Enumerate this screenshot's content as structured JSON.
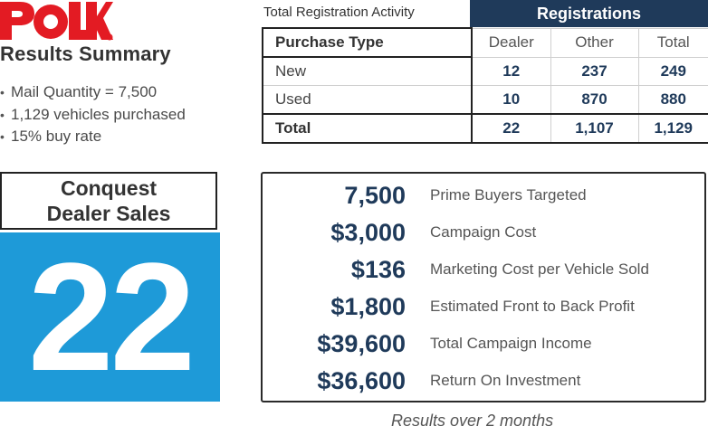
{
  "brand": {
    "logo_text": "POLK",
    "accent_color": "#e31b23"
  },
  "summary": {
    "title": "Results Summary",
    "bullets": [
      "Mail Quantity = 7,500",
      "1,129 vehicles purchased",
      "15% buy rate"
    ]
  },
  "registration": {
    "caption": "Total Registration Activity",
    "group_header": "Registrations",
    "columns": [
      "Purchase Type",
      "Dealer",
      "Other",
      "Total"
    ],
    "rows": [
      {
        "label": "New",
        "dealer": "12",
        "other": "237",
        "total": "249"
      },
      {
        "label": "Used",
        "dealer": "10",
        "other": "870",
        "total": "880"
      },
      {
        "label": "Total",
        "dealer": "22",
        "other": "1,107",
        "total": "1,129"
      }
    ],
    "header_color": "#1f3a5a"
  },
  "conquest": {
    "line1": "Conquest",
    "line2": "Dealer Sales",
    "value": "22",
    "tile_color": "#1e9ad8"
  },
  "results": {
    "metrics": [
      {
        "value": "7,500",
        "label": "Prime Buyers Targeted"
      },
      {
        "value": "$3,000",
        "label": "Campaign Cost"
      },
      {
        "value": "$136",
        "label": "Marketing Cost per Vehicle Sold"
      },
      {
        "value": "$1,800",
        "label": "Estimated Front to Back Profit"
      },
      {
        "value": "$39,600",
        "label": "Total Campaign Income"
      },
      {
        "value": "$36,600",
        "label": "Return On Investment"
      }
    ],
    "footnote": "Results over 2 months"
  }
}
